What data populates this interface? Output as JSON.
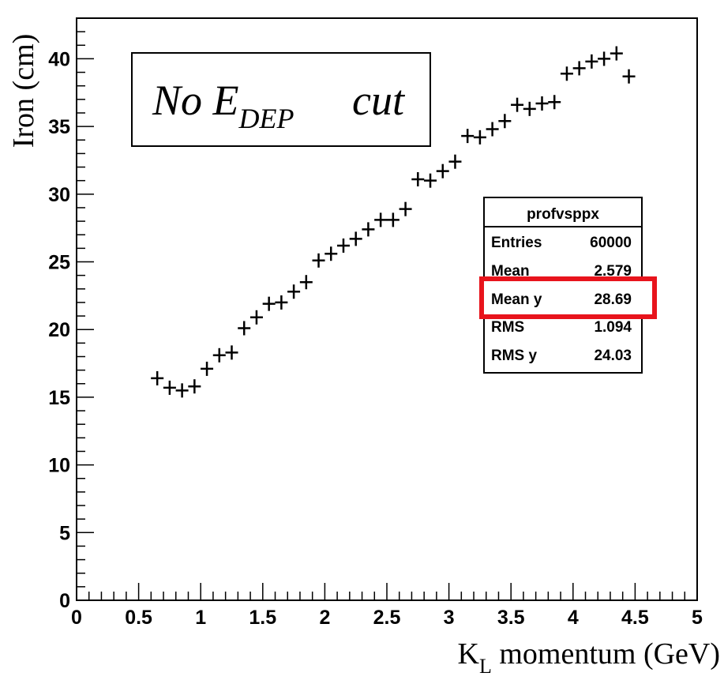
{
  "chart_data": {
    "type": "scatter",
    "marker": "cross",
    "xlabel_main": "K",
    "xlabel_sub": "L",
    "xlabel_rest": " momentum (GeV)",
    "ylabel": "Iron (cm)",
    "xlim": [
      0,
      5
    ],
    "ylim": [
      0,
      43
    ],
    "xticks": [
      {
        "value": 0,
        "label": "0"
      },
      {
        "value": 0.5,
        "label": "0.5"
      },
      {
        "value": 1,
        "label": "1"
      },
      {
        "value": 1.5,
        "label": "1.5"
      },
      {
        "value": 2,
        "label": "2"
      },
      {
        "value": 2.5,
        "label": "2.5"
      },
      {
        "value": 3,
        "label": "3"
      },
      {
        "value": 3.5,
        "label": "3.5"
      },
      {
        "value": 4,
        "label": "4"
      },
      {
        "value": 4.5,
        "label": "4.5"
      },
      {
        "value": 5,
        "label": "5"
      }
    ],
    "yticks": [
      {
        "value": 0,
        "label": "0"
      },
      {
        "value": 5,
        "label": "5"
      },
      {
        "value": 10,
        "label": "10"
      },
      {
        "value": 15,
        "label": "15"
      },
      {
        "value": 20,
        "label": "20"
      },
      {
        "value": 25,
        "label": "25"
      },
      {
        "value": 30,
        "label": "30"
      },
      {
        "value": 35,
        "label": "35"
      },
      {
        "value": 40,
        "label": "40"
      }
    ],
    "x": [
      0.65,
      0.75,
      0.85,
      0.95,
      1.05,
      1.15,
      1.25,
      1.35,
      1.45,
      1.55,
      1.65,
      1.75,
      1.85,
      1.95,
      2.05,
      2.15,
      2.25,
      2.35,
      2.45,
      2.55,
      2.65,
      2.75,
      2.85,
      2.95,
      3.05,
      3.15,
      3.25,
      3.35,
      3.45,
      3.55,
      3.65,
      3.75,
      3.85,
      3.95,
      4.05,
      4.15,
      4.25,
      4.35,
      4.45
    ],
    "y": [
      16.4,
      15.7,
      15.5,
      15.8,
      17.1,
      18.1,
      18.3,
      20.1,
      20.9,
      21.9,
      22.0,
      22.8,
      23.5,
      25.1,
      25.6,
      26.2,
      26.7,
      27.4,
      28.1,
      28.1,
      28.9,
      31.1,
      31.0,
      31.7,
      32.4,
      34.3,
      34.2,
      34.8,
      35.4,
      36.6,
      36.3,
      36.7,
      36.8,
      38.9,
      39.3,
      39.8,
      40.0,
      40.4,
      38.7
    ],
    "annotation": {
      "main": "No E",
      "sub": "DEP",
      "rest": "cut"
    },
    "stats_box": {
      "title": "profvsppx",
      "rows": [
        {
          "label": "Entries",
          "value": "60000"
        },
        {
          "label": "Mean",
          "value": "2.579"
        },
        {
          "label": "Mean y",
          "value": "28.69"
        },
        {
          "label": "RMS",
          "value": "1.094"
        },
        {
          "label": "RMS y",
          "value": "24.03"
        }
      ],
      "highlight_row": 2,
      "highlight_color": "#e8141c"
    }
  }
}
